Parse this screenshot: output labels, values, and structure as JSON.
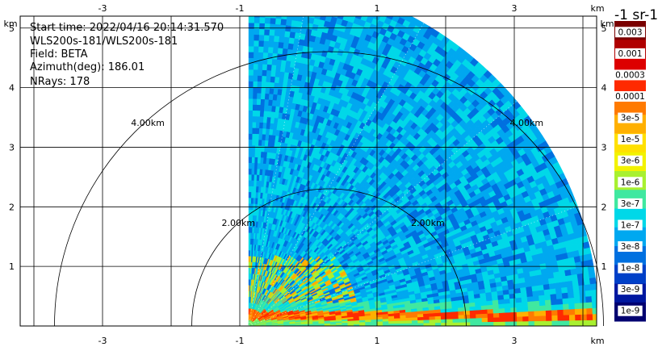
{
  "header": {
    "start_time": "Start time: 2022/04/16 20:14:31.570",
    "instrument": "WLS200s-181/WLS200s-181",
    "field": "Field: BETA",
    "azimuth": "Azimuth(deg): 186.01",
    "nrays": "NRays: 178"
  },
  "colorbar": {
    "title": "-1 sr-1",
    "labels": [
      "0.003",
      "0.001",
      "0.0003",
      "0.0001",
      "3e-5",
      "1e-5",
      "3e-6",
      "1e-6",
      "3e-7",
      "1e-7",
      "3e-8",
      "1e-8",
      "3e-9",
      "1e-9"
    ],
    "colors": [
      "#7a0000",
      "#b00000",
      "#dd0000",
      "#ff2a00",
      "#ff7a00",
      "#ffb000",
      "#ffe000",
      "#f2f200",
      "#a8f030",
      "#40e8a0",
      "#00d8e8",
      "#00a8f0",
      "#0070e0",
      "#0040c8",
      "#0018a0",
      "#000070"
    ]
  },
  "chart_data": {
    "type": "heatmap",
    "title": "",
    "xlabel": "km",
    "ylabel": "km",
    "x_ticks": [
      "-3",
      "-1",
      "1",
      "3"
    ],
    "y_ticks": [
      "1",
      "2",
      "3",
      "4",
      "5"
    ],
    "xlim": [
      -4.2,
      4.2
    ],
    "ylim": [
      0,
      5.2
    ],
    "grid": true,
    "range_rings": [
      {
        "radius_km": 2.0,
        "label": "2.00km"
      },
      {
        "radius_km": 4.0,
        "label": "4.00km"
      }
    ],
    "sector": {
      "azimuth_start_deg": 0,
      "azimuth_end_deg": 90,
      "max_range_km": 5.1,
      "origin_x_km": -0.87
    }
  }
}
